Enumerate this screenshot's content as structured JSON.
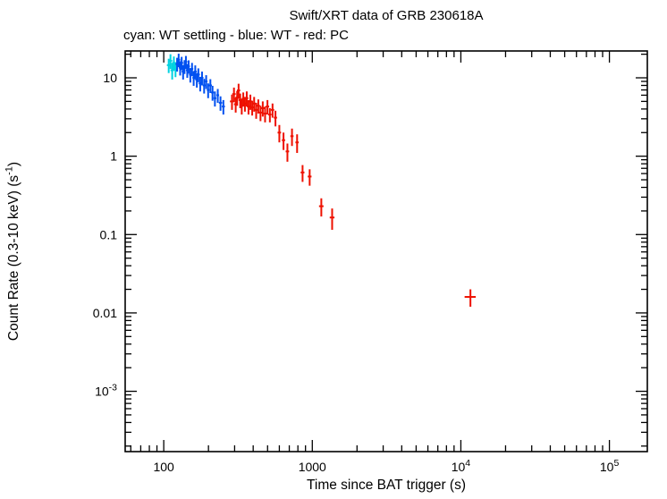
{
  "figure": {
    "background": "#ffffff",
    "text_color": "#000000"
  },
  "chart_data": {
    "type": "scatter",
    "title": "Swift/XRT data of GRB 230618A",
    "subtitle": "cyan: WT settling - blue: WT - red: PC",
    "xlabel": "Time since BAT trigger (s)",
    "ylabel": "Count Rate (0.3-10 keV) (s^{-1})",
    "xscale": "log",
    "yscale": "log",
    "grid": false,
    "legend_position": "subtitle",
    "xlim": [
      55,
      180000
    ],
    "ylim": [
      0.00017,
      22
    ],
    "x_ticks": [
      {
        "v": 100,
        "label": "100"
      },
      {
        "v": 1000,
        "label": "1000"
      },
      {
        "v": 10000,
        "label": "10^{4}"
      },
      {
        "v": 100000,
        "label": "10^{5}"
      }
    ],
    "y_ticks": [
      {
        "v": 10,
        "label": "10"
      },
      {
        "v": 1,
        "label": "1"
      },
      {
        "v": 0.1,
        "label": "0.1"
      },
      {
        "v": 0.01,
        "label": "0.01"
      },
      {
        "v": 0.001,
        "label": "10^{-3}"
      }
    ],
    "series": [
      {
        "name": "WT settling",
        "color": "#00D2E0",
        "marker": "error-cross",
        "points": [
          [
            108,
            14.5,
            3,
            3.0
          ],
          [
            111,
            16.5,
            3,
            3.5
          ],
          [
            114,
            12.5,
            3,
            3.0
          ],
          [
            117,
            15.5,
            3,
            3.2
          ],
          [
            120,
            13.0,
            3,
            2.8
          ]
        ]
      },
      {
        "name": "WT",
        "color": "#0050F0",
        "marker": "error-cross",
        "points": [
          [
            123,
            15.0,
            3,
            3.0
          ],
          [
            126,
            17.0,
            3,
            3.3
          ],
          [
            129,
            13.5,
            3,
            2.8
          ],
          [
            132,
            15.5,
            3,
            3.0
          ],
          [
            135,
            12.0,
            3,
            2.5
          ],
          [
            138,
            14.0,
            3,
            2.8
          ],
          [
            141,
            16.0,
            3,
            3.0
          ],
          [
            144,
            12.5,
            3,
            2.5
          ],
          [
            147,
            14.0,
            3,
            2.7
          ],
          [
            151,
            11.0,
            3,
            2.3
          ],
          [
            155,
            13.0,
            3,
            2.5
          ],
          [
            159,
            10.0,
            3,
            2.1
          ],
          [
            163,
            12.0,
            4,
            2.4
          ],
          [
            167,
            9.5,
            4,
            2.0
          ],
          [
            171,
            11.0,
            4,
            2.2
          ],
          [
            176,
            8.5,
            4,
            1.8
          ],
          [
            181,
            10.0,
            4,
            2.0
          ],
          [
            187,
            8.0,
            4,
            1.7
          ],
          [
            193,
            9.0,
            4,
            1.8
          ],
          [
            199,
            7.0,
            4,
            1.5
          ],
          [
            206,
            8.0,
            5,
            1.6
          ],
          [
            213,
            6.5,
            5,
            1.4
          ],
          [
            221,
            5.5,
            5,
            1.2
          ],
          [
            231,
            6.0,
            5,
            1.2
          ],
          [
            241,
            4.8,
            6,
            1.0
          ],
          [
            252,
            4.3,
            6,
            0.9
          ]
        ]
      },
      {
        "name": "PC",
        "color": "#EE1100",
        "marker": "error-cross",
        "points": [
          [
            288,
            5.0,
            9,
            1.1
          ],
          [
            297,
            6.2,
            8,
            1.3
          ],
          [
            305,
            4.6,
            8,
            1.0
          ],
          [
            312,
            5.6,
            8,
            1.2
          ],
          [
            319,
            6.9,
            8,
            1.5
          ],
          [
            327,
            5.2,
            8,
            1.1
          ],
          [
            335,
            4.4,
            8,
            1.0
          ],
          [
            343,
            5.4,
            8,
            1.1
          ],
          [
            352,
            4.7,
            9,
            1.0
          ],
          [
            362,
            5.5,
            9,
            1.2
          ],
          [
            372,
            4.3,
            9,
            0.9
          ],
          [
            383,
            5.0,
            10,
            1.1
          ],
          [
            394,
            4.2,
            10,
            0.9
          ],
          [
            406,
            4.7,
            10,
            1.0
          ],
          [
            419,
            3.9,
            10,
            0.9
          ],
          [
            433,
            4.4,
            11,
            0.9
          ],
          [
            448,
            3.6,
            11,
            0.8
          ],
          [
            464,
            4.1,
            12,
            0.9
          ],
          [
            481,
            3.5,
            12,
            0.8
          ],
          [
            499,
            4.3,
            13,
            0.9
          ],
          [
            518,
            3.4,
            13,
            0.7
          ],
          [
            540,
            3.9,
            14,
            0.8
          ],
          [
            565,
            3.1,
            14,
            0.7
          ],
          [
            600,
            2.0,
            16,
            0.5
          ],
          [
            640,
            1.6,
            16,
            0.4
          ],
          [
            680,
            1.15,
            18,
            0.3
          ],
          [
            730,
            1.8,
            18,
            0.45
          ],
          [
            790,
            1.5,
            20,
            0.4
          ],
          [
            860,
            0.62,
            25,
            0.15
          ],
          [
            960,
            0.55,
            28,
            0.13
          ],
          [
            1150,
            0.23,
            40,
            0.06
          ],
          [
            1360,
            0.165,
            50,
            0.05
          ],
          [
            11600,
            0.016,
            1000,
            0.004
          ]
        ]
      }
    ]
  }
}
